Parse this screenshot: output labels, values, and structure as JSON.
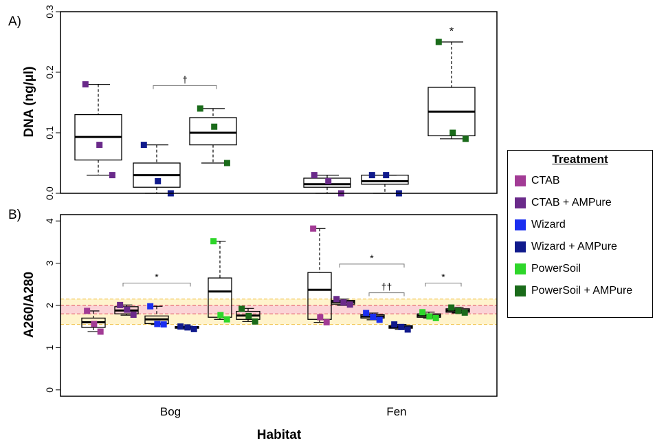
{
  "legend": {
    "title": "Treatment",
    "items": [
      {
        "label": "CTAB",
        "color": "#a23b95"
      },
      {
        "label": "CTAB + AMPure",
        "color": "#6a2a8a"
      },
      {
        "label": "Wizard",
        "color": "#1a2ef0"
      },
      {
        "label": "Wizard + AMPure",
        "color": "#101a8c"
      },
      {
        "label": "PowerSoil",
        "color": "#2ed62a"
      },
      {
        "label": "PowerSoil + AMPure",
        "color": "#1a6b1a"
      }
    ]
  },
  "chart_data": [
    {
      "panel_label": "A)",
      "type": "box",
      "ylabel": "DNA (ng/µl)",
      "ylim": [
        0,
        0.3
      ],
      "yticks": [
        "0.0",
        "0.1",
        "0.2",
        "0.3"
      ],
      "tick_values": [
        0,
        0.1,
        0.2,
        0.3
      ],
      "categories": [
        "Bog",
        "Fen"
      ],
      "boxes": [
        {
          "group": "Bog",
          "treatment": "CTAB + AMPure",
          "color": "#6a2a8a",
          "min": 0.03,
          "q1": 0.055,
          "median": 0.093,
          "q3": 0.13,
          "max": 0.18,
          "points": [
            0.18,
            0.08,
            0.03
          ]
        },
        {
          "group": "Bog",
          "treatment": "Wizard + AMPure",
          "color": "#101a8c",
          "min": 0.0,
          "q1": 0.01,
          "median": 0.03,
          "q3": 0.05,
          "max": 0.08,
          "points": [
            0.08,
            0.02,
            0.0
          ]
        },
        {
          "group": "Bog",
          "treatment": "PowerSoil + AMPure",
          "color": "#1a6b1a",
          "min": 0.05,
          "q1": 0.08,
          "median": 0.1,
          "q3": 0.125,
          "max": 0.14,
          "points": [
            0.14,
            0.11,
            0.05
          ]
        },
        {
          "group": "Fen",
          "treatment": "CTAB + AMPure",
          "color": "#6a2a8a",
          "min": 0.0,
          "q1": 0.01,
          "median": 0.015,
          "q3": 0.025,
          "max": 0.03,
          "points": [
            0.03,
            0.02,
            0.0
          ]
        },
        {
          "group": "Fen",
          "treatment": "Wizard + AMPure",
          "color": "#101a8c",
          "min": 0.0,
          "q1": 0.015,
          "median": 0.02,
          "q3": 0.03,
          "max": 0.03,
          "points": [
            0.03,
            0.03,
            0.0
          ]
        },
        {
          "group": "Fen",
          "treatment": "PowerSoil + AMPure",
          "color": "#1a6b1a",
          "min": 0.09,
          "q1": 0.095,
          "median": 0.135,
          "q3": 0.175,
          "max": 0.25,
          "points": [
            0.25,
            0.1,
            0.09
          ]
        }
      ],
      "annotations": [
        {
          "text": "†",
          "bracket": true,
          "from_box": 1,
          "to_box": 2,
          "y": 0.178
        },
        {
          "text": "*",
          "bracket": false,
          "at_box": 5,
          "y": 0.262
        }
      ]
    },
    {
      "panel_label": "B)",
      "type": "box",
      "ylabel": "A260/A280",
      "xlabel": "Habitat",
      "ylim": [
        -0.15,
        4.15
      ],
      "yticks": [
        "0",
        "1",
        "2",
        "3",
        "4"
      ],
      "tick_values": [
        0,
        1,
        2,
        3,
        4
      ],
      "categories": [
        "Bog",
        "Fen"
      ],
      "reference_bands": [
        {
          "from": 1.55,
          "to": 2.15,
          "color": "#fff3cc",
          "line": "#f0c040"
        },
        {
          "from": 1.8,
          "to": 2.0,
          "color": "#fbd3d6",
          "line": "#e05060"
        }
      ],
      "boxes": [
        {
          "group": "Bog",
          "treatment": "CTAB",
          "color": "#a23b95",
          "min": 1.38,
          "q1": 1.48,
          "median": 1.6,
          "q3": 1.7,
          "max": 1.87,
          "points": [
            1.87,
            1.56,
            1.38
          ]
        },
        {
          "group": "Bog",
          "treatment": "CTAB + AMPure",
          "color": "#6a2a8a",
          "min": 1.77,
          "q1": 1.8,
          "median": 1.88,
          "q3": 1.97,
          "max": 2.01,
          "points": [
            2.01,
            1.9,
            1.78
          ]
        },
        {
          "group": "Bog",
          "treatment": "Wizard",
          "color": "#1a2ef0",
          "min": 1.55,
          "q1": 1.57,
          "median": 1.67,
          "q3": 1.75,
          "max": 1.98,
          "points": [
            1.98,
            1.56,
            1.55
          ]
        },
        {
          "group": "Bog",
          "treatment": "Wizard + AMPure",
          "color": "#101a8c",
          "min": 1.44,
          "q1": 1.46,
          "median": 1.48,
          "q3": 1.5,
          "max": 1.51,
          "points": [
            1.5,
            1.48,
            1.44
          ]
        },
        {
          "group": "Bog",
          "treatment": "PowerSoil",
          "color": "#2ed62a",
          "min": 1.67,
          "q1": 1.72,
          "median": 2.33,
          "q3": 2.65,
          "max": 3.52,
          "points": [
            3.52,
            1.77,
            1.67
          ]
        },
        {
          "group": "Bog",
          "treatment": "PowerSoil + AMPure",
          "color": "#1a6b1a",
          "min": 1.62,
          "q1": 1.67,
          "median": 1.76,
          "q3": 1.86,
          "max": 1.93,
          "points": [
            1.92,
            1.75,
            1.62
          ]
        },
        {
          "group": "Fen",
          "treatment": "CTAB",
          "color": "#a23b95",
          "min": 1.6,
          "q1": 1.67,
          "median": 2.37,
          "q3": 2.78,
          "max": 3.82,
          "points": [
            3.82,
            1.72,
            1.6
          ]
        },
        {
          "group": "Fen",
          "treatment": "CTAB + AMPure",
          "color": "#6a2a8a",
          "min": 2.0,
          "q1": 2.03,
          "median": 2.08,
          "q3": 2.12,
          "max": 2.15,
          "points": [
            2.15,
            2.07,
            2.02
          ]
        },
        {
          "group": "Fen",
          "treatment": "Wizard",
          "color": "#1a2ef0",
          "min": 1.66,
          "q1": 1.7,
          "median": 1.74,
          "q3": 1.78,
          "max": 1.82,
          "points": [
            1.82,
            1.73,
            1.66
          ]
        },
        {
          "group": "Fen",
          "treatment": "Wizard + AMPure",
          "color": "#101a8c",
          "min": 1.43,
          "q1": 1.46,
          "median": 1.49,
          "q3": 1.52,
          "max": 1.55,
          "points": [
            1.55,
            1.49,
            1.43
          ]
        },
        {
          "group": "Fen",
          "treatment": "PowerSoil",
          "color": "#2ed62a",
          "min": 1.7,
          "q1": 1.72,
          "median": 1.76,
          "q3": 1.8,
          "max": 1.84,
          "points": [
            1.84,
            1.74,
            1.7
          ]
        },
        {
          "group": "Fen",
          "treatment": "PowerSoil + AMPure",
          "color": "#1a6b1a",
          "min": 1.82,
          "q1": 1.84,
          "median": 1.88,
          "q3": 1.92,
          "max": 1.95,
          "points": [
            1.95,
            1.87,
            1.83
          ]
        }
      ],
      "annotations": [
        {
          "text": "*",
          "bracket": true,
          "from_box": 1,
          "to_box": 3,
          "y": 2.53
        },
        {
          "text": "*",
          "bracket": true,
          "from_box": 7,
          "to_box": 9,
          "y": 2.98
        },
        {
          "text": "††",
          "bracket": true,
          "from_box": 8,
          "to_box": 9,
          "y": 2.3
        },
        {
          "text": "*",
          "bracket": true,
          "from_box": 10,
          "to_box": 11,
          "y": 2.53
        }
      ]
    }
  ]
}
